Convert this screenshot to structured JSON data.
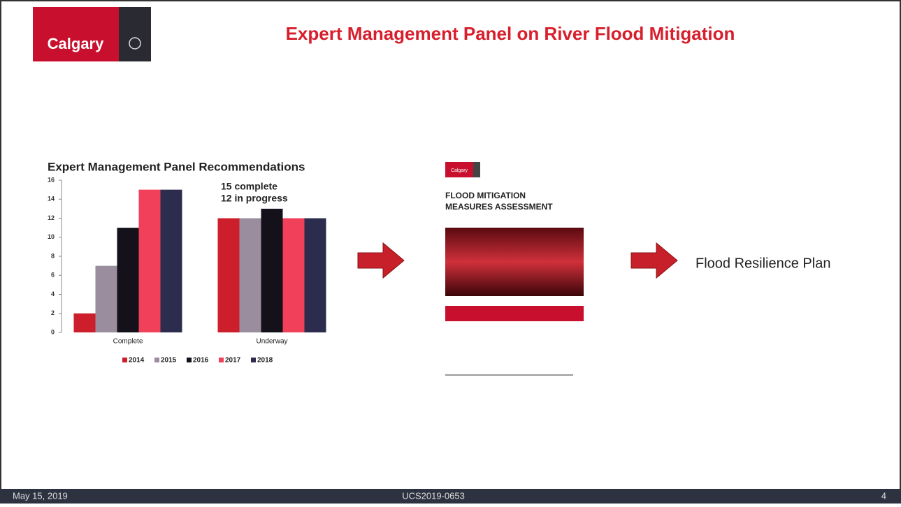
{
  "header": {
    "logo": "Calgary",
    "title": "Expert Management Panel on River Flood Mitigation"
  },
  "chart_data": {
    "type": "bar",
    "title": "Expert Management Panel Recommendations",
    "annotation": [
      "15 complete",
      "12 in progress"
    ],
    "categories": [
      "Complete",
      "Underway"
    ],
    "series": [
      {
        "name": "2014",
        "color": "#cc1f2b",
        "values": [
          2,
          12
        ]
      },
      {
        "name": "2015",
        "color": "#9a8e9e",
        "values": [
          7,
          12
        ]
      },
      {
        "name": "2016",
        "color": "#15111a",
        "values": [
          11,
          13
        ]
      },
      {
        "name": "2017",
        "color": "#f0405a",
        "values": [
          15,
          12
        ]
      },
      {
        "name": "2018",
        "color": "#2c2d4e",
        "values": [
          15,
          12
        ]
      }
    ],
    "ylim": [
      0,
      16
    ],
    "yticks": [
      0,
      2,
      4,
      6,
      8,
      10,
      12,
      14,
      16
    ],
    "legend": "bottom"
  },
  "document": {
    "logo": "Calgary",
    "title": [
      "FLOOD MITIGATION",
      "MEASURES ASSESSMENT"
    ]
  },
  "result": "Flood Resilience Plan",
  "footer": {
    "date": "May 15, 2019",
    "code": "UCS2019-0653",
    "page": "4"
  }
}
